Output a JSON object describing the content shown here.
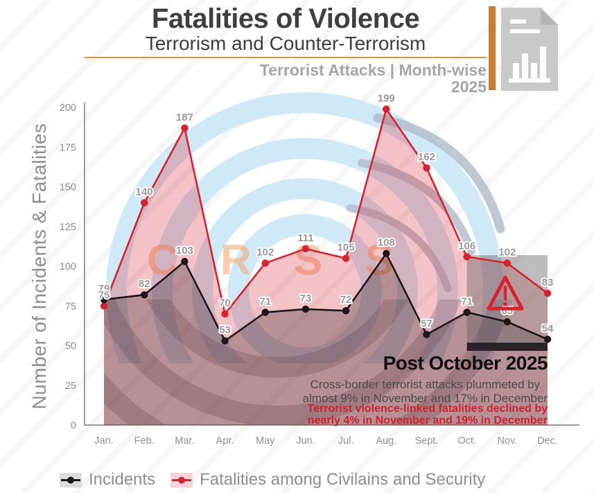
{
  "header": {
    "title": "Fatalities of Violence",
    "subtitle": "Terrorism and Counter-Terrorism",
    "tagline": "Terrorist Attacks | Month-wise",
    "year": "2025"
  },
  "watermark": {
    "text": "C R S S"
  },
  "chart_data": {
    "type": "line",
    "title": "Terrorist Attacks | Month-wise 2025",
    "xlabel": "",
    "ylabel": "Number of Incidents & Fatalities",
    "ylim": [
      0,
      200
    ],
    "yticks": [
      0,
      25,
      50,
      75,
      100,
      125,
      150,
      175,
      200
    ],
    "grid": false,
    "legend_position": "bottom",
    "categories": [
      "Jan.",
      "Feb.",
      "Mar.",
      "Apr.",
      "May",
      "Jun.",
      "Jul.",
      "Aug.",
      "Sept.",
      "Oct.",
      "Nov.",
      "Dec."
    ],
    "series": [
      {
        "name": "Incidents",
        "color": "#1f161b",
        "fill": "rgba(26,18,21,0.28)",
        "values": [
          79,
          82,
          103,
          53,
          71,
          73,
          72,
          108,
          57,
          71,
          65,
          54
        ]
      },
      {
        "name": "Fatalities among Civilains and Security",
        "color": "#d8232f",
        "fill": "rgba(216,35,47,0.27)",
        "values": [
          75,
          140,
          187,
          70,
          102,
          111,
          105,
          199,
          162,
          106,
          102,
          83
        ]
      }
    ],
    "highlight_region": {
      "from": "Oct.",
      "to": "Dec.",
      "label": "Post October 2025"
    }
  },
  "annotation": {
    "title": "Post October 2025",
    "gray_line1": "Cross-border terrorist attacks plummeted by",
    "gray_line2": "almost 9% in November and 17% in December",
    "red_line1": "Terrorist violence-linked fatalities declined by",
    "red_line2": "nearly 4% in November and 19% in December"
  },
  "legend": [
    {
      "label": "Incidents",
      "line_color": "#1f161b",
      "swatch_color": "#dcdcdc"
    },
    {
      "label": "Fatalities among Civilains and Security",
      "line_color": "#d8232f",
      "swatch_color": "#f6d3d7"
    }
  ],
  "colors": {
    "accent_orange": "#cc7c2e",
    "header_rule": "#d8973a",
    "title_text": "#3f3f3f",
    "tagline_text": "#a6a6a6",
    "incidents_line": "#1f161b",
    "fatalities_line": "#d8232f",
    "incidents_fill": "rgba(26,18,21,0.28)",
    "fatalities_fill": "rgba(216,35,47,0.27)",
    "highlight_box": "rgba(98,98,98,0.42)",
    "highlight_bar": "#2a2327",
    "axis": "#9b9b9b",
    "tick_label": "#8f8f8f",
    "point_label": "#9b9b9b",
    "annotation_red": "#cf2230",
    "warning_red": "#d8232f",
    "watermark_blue": "#cfe9f7",
    "watermark_gray": "rgba(176,186,201,0.8)",
    "watermark_dark": "rgba(47,58,72,0.2)",
    "watermark_orange": "rgba(242,166,110,0.55)",
    "doc_icon_gray": "#c9c9c9"
  }
}
